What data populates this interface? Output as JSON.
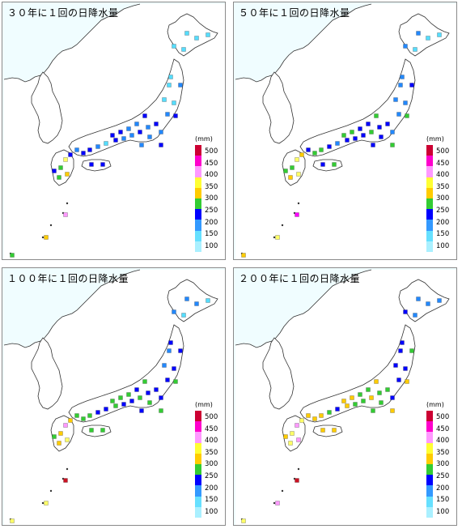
{
  "panels": [
    {
      "id": "p30",
      "title": "３０年に１回の日降水量"
    },
    {
      "id": "p50",
      "title": "５０年に１回の日降水量"
    },
    {
      "id": "p100",
      "title": "１００年に１回の日降水量"
    },
    {
      "id": "p200",
      "title": "２００年に１回の日降水量"
    }
  ],
  "legend": {
    "unit": "(mm)",
    "levels": [
      "500",
      "450",
      "400",
      "350",
      "300",
      "250",
      "200",
      "150",
      "100"
    ],
    "colors": [
      "#ff00ff",
      "#ff66ff",
      "#ffccff",
      "#ffff66",
      "#ffcc00",
      "#33cc33",
      "#0000ff",
      "#3399ff",
      "#66e0ff",
      "#d0303a"
    ]
  }
}
